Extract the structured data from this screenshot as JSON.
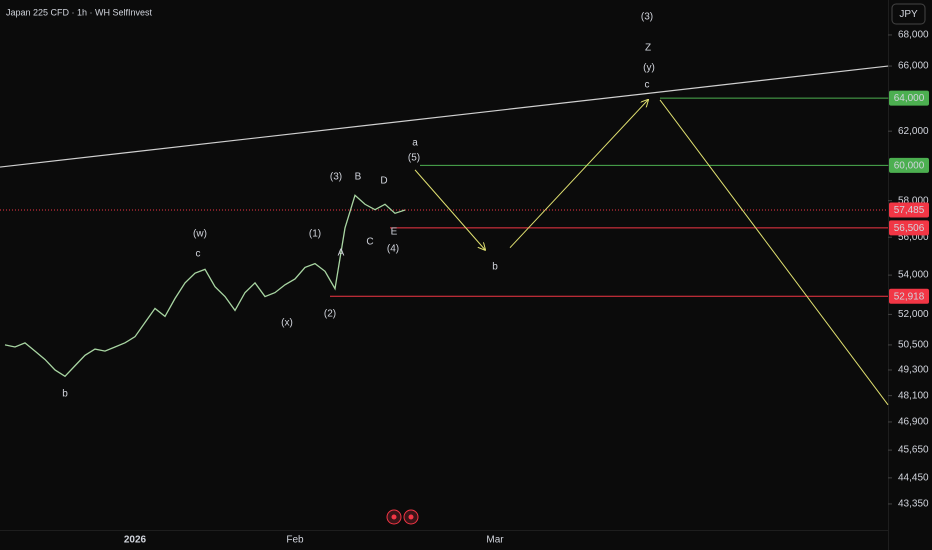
{
  "chart_data": {
    "type": "line",
    "title": "Japan 225 CFD · 1h · WH SelfInvest",
    "currency": "JPY",
    "log_scale": true,
    "ylim": [
      42280,
      70320
    ],
    "yticks": [
      {
        "value": 68000,
        "label": "68,000"
      },
      {
        "value": 66000,
        "label": "66,000"
      },
      {
        "value": 64000,
        "label": "64,000"
      },
      {
        "value": 62000,
        "label": "62,000"
      },
      {
        "value": 60000,
        "label": "60,000"
      },
      {
        "value": 58000,
        "label": "58,000"
      },
      {
        "value": 56000,
        "label": "56,000"
      },
      {
        "value": 54000,
        "label": "54,000"
      },
      {
        "value": 52000,
        "label": "52,000"
      },
      {
        "value": 50500,
        "label": "50,500"
      },
      {
        "value": 49300,
        "label": "49,300"
      },
      {
        "value": 48100,
        "label": "48,100"
      },
      {
        "value": 46900,
        "label": "46,900"
      },
      {
        "value": 45650,
        "label": "45,650"
      },
      {
        "value": 44450,
        "label": "44,450"
      },
      {
        "value": 43350,
        "label": "43,350"
      }
    ],
    "categories": [
      null,
      null,
      null,
      null,
      null,
      null,
      null,
      null,
      null,
      null,
      null,
      null,
      null,
      "2026",
      null,
      null,
      null,
      null,
      null,
      null,
      null,
      null,
      null,
      null,
      null,
      null,
      null,
      null,
      null,
      "Feb",
      null,
      null,
      null,
      null,
      null,
      null,
      null,
      null,
      null,
      null,
      null,
      null,
      null,
      null,
      null,
      null,
      null,
      null,
      null,
      "Mar",
      null,
      null,
      null,
      null,
      null,
      null,
      null,
      null,
      null,
      null,
      null,
      null,
      null,
      null,
      null,
      null,
      null,
      null,
      null,
      null,
      null,
      null,
      null,
      null,
      null,
      null,
      null,
      null,
      null,
      null,
      null,
      null,
      null,
      null,
      null,
      null,
      null,
      null,
      null
    ],
    "series": [
      {
        "name": "Japan 225 CFD",
        "color": "#a8d5a2",
        "values": [
          50500,
          50400,
          50600,
          50200,
          49800,
          49300,
          49000,
          49500,
          50000,
          50300,
          50200,
          50400,
          50600,
          50900,
          51600,
          52300,
          51900,
          52800,
          53600,
          54100,
          54300,
          53400,
          52900,
          52200,
          53100,
          53600,
          52900,
          53100,
          53500,
          53800,
          54400,
          54600,
          54200,
          53300,
          56500,
          58300,
          57800,
          57500,
          57800,
          57300,
          57485,
          null,
          null,
          null,
          null,
          null,
          null,
          null,
          null,
          null,
          null,
          null,
          null,
          null,
          null,
          null,
          null,
          null,
          null,
          null,
          null,
          null,
          null,
          null,
          null,
          null,
          null,
          null,
          null,
          null,
          null,
          null,
          null,
          null,
          null,
          null,
          null,
          null,
          null,
          null,
          null,
          null,
          null,
          null,
          null,
          null,
          null,
          null,
          null
        ]
      }
    ],
    "levels": [
      {
        "value": 64000,
        "label": "64,000",
        "color": "#4caf50"
      },
      {
        "value": 60000,
        "label": "60,000",
        "color": "#4caf50"
      },
      {
        "value": 57485,
        "label": "57,485",
        "color": "#f23645"
      },
      {
        "value": 56506,
        "label": "56,506",
        "color": "#f23645"
      },
      {
        "value": 52918,
        "label": "52,918",
        "color": "#f23645"
      }
    ],
    "trend_line": [
      59900,
      66000
    ],
    "projection": [
      [
        59740,
        55330
      ],
      [
        55440,
        63890
      ],
      [
        63890,
        47680
      ]
    ],
    "projection_color": "#e0e070",
    "annotations": [
      {
        "text": "(3)",
        "color": "#e6e6e6"
      },
      {
        "text": "Z",
        "color": "#e0c84a"
      },
      {
        "text": "(y)",
        "color": "#e6e6e6"
      },
      {
        "text": "c",
        "color": "#e6e6e6"
      },
      {
        "text": "a",
        "color": "#e6e6e6"
      },
      {
        "text": "(5)",
        "color": "#e6e6e6"
      },
      {
        "text": "(3)",
        "color": "#e6e6e6"
      },
      {
        "text": "B",
        "color": "#e6e6e6"
      },
      {
        "text": "D",
        "color": "#e6e6e6"
      },
      {
        "text": "(1)",
        "color": "#e6e6e6"
      },
      {
        "text": "A",
        "color": "#e6e6e6"
      },
      {
        "text": "C",
        "color": "#e6e6e6"
      },
      {
        "text": "E",
        "color": "#e6e6e6"
      },
      {
        "text": "(4)",
        "color": "#e6e6e6"
      },
      {
        "text": "(2)",
        "color": "#e6e6e6"
      },
      {
        "text": "(x)",
        "color": "#e6e6e6"
      },
      {
        "text": "(w)",
        "color": "#e6e6e6"
      },
      {
        "text": "c",
        "color": "#e6e6e6"
      },
      {
        "text": "b",
        "color": "#e6e6e6"
      },
      {
        "text": "b",
        "color": "#e6e6e6"
      }
    ]
  }
}
